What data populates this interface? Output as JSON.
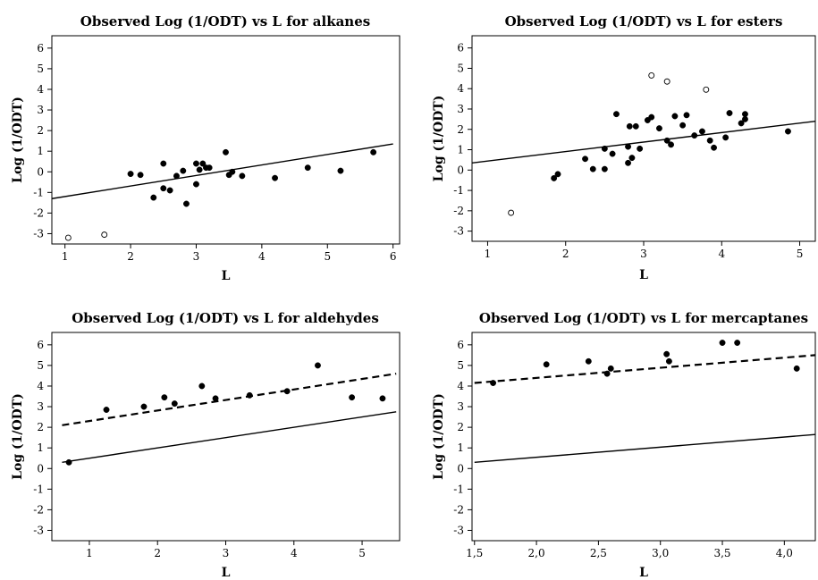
{
  "chart_data": [
    {
      "type": "scatter",
      "title": "Observed Log (1/ODT) vs L for alkanes",
      "xlabel": "L",
      "ylabel": "Log (1/ODT)",
      "xlim": [
        0.8,
        6.1
      ],
      "ylim": [
        -3.5,
        6.6
      ],
      "xticks": [
        1,
        2,
        3,
        4,
        5,
        6
      ],
      "xtick_labels": [
        "1",
        "2",
        "3",
        "4",
        "5",
        "6"
      ],
      "yticks": [
        -3,
        -2,
        -1,
        0,
        1,
        2,
        3,
        4,
        5,
        6
      ],
      "ytick_labels": [
        "-3",
        "-2",
        "-1",
        "0",
        "1",
        "2",
        "3",
        "4",
        "5",
        "6"
      ],
      "series": [
        {
          "marker": "filled",
          "points": [
            [
              2.0,
              -0.1
            ],
            [
              2.15,
              -0.15
            ],
            [
              2.35,
              -1.25
            ],
            [
              2.5,
              0.4
            ],
            [
              2.5,
              -0.8
            ],
            [
              2.6,
              -0.9
            ],
            [
              2.7,
              -0.2
            ],
            [
              2.8,
              0.05
            ],
            [
              2.85,
              -1.55
            ],
            [
              3.0,
              0.4
            ],
            [
              3.0,
              -0.6
            ],
            [
              3.05,
              0.1
            ],
            [
              3.1,
              0.4
            ],
            [
              3.15,
              0.2
            ],
            [
              3.2,
              0.2
            ],
            [
              3.45,
              0.95
            ],
            [
              3.5,
              -0.15
            ],
            [
              3.55,
              0.0
            ],
            [
              3.7,
              -0.2
            ],
            [
              4.2,
              -0.3
            ],
            [
              4.7,
              0.2
            ],
            [
              5.2,
              0.05
            ],
            [
              5.7,
              0.95
            ]
          ]
        },
        {
          "marker": "open",
          "points": [
            [
              1.05,
              -3.2
            ],
            [
              1.6,
              -3.05
            ]
          ]
        }
      ],
      "lines": [
        {
          "style": "solid",
          "x": [
            0.8,
            6.0
          ],
          "y": [
            -1.3,
            1.35
          ]
        }
      ]
    },
    {
      "type": "scatter",
      "title": "Observed Log (1/ODT) vs L for esters",
      "xlabel": "L",
      "ylabel": "Log (1/ODT)",
      "xlim": [
        0.8,
        5.2
      ],
      "ylim": [
        -3.5,
        6.6
      ],
      "xticks": [
        1,
        2,
        3,
        4,
        5
      ],
      "xtick_labels": [
        "1",
        "2",
        "3",
        "4",
        "5"
      ],
      "yticks": [
        -3,
        -2,
        -1,
        0,
        1,
        2,
        3,
        4,
        5,
        6
      ],
      "ytick_labels": [
        "-3",
        "-2",
        "-1",
        "0",
        "1",
        "2",
        "3",
        "4",
        "5",
        "6"
      ],
      "series": [
        {
          "marker": "filled",
          "points": [
            [
              1.85,
              -0.4
            ],
            [
              1.9,
              -0.2
            ],
            [
              2.25,
              0.55
            ],
            [
              2.35,
              0.05
            ],
            [
              2.5,
              1.05
            ],
            [
              2.5,
              0.05
            ],
            [
              2.6,
              0.8
            ],
            [
              2.65,
              2.75
            ],
            [
              2.8,
              1.15
            ],
            [
              2.8,
              0.35
            ],
            [
              2.82,
              2.15
            ],
            [
              2.85,
              0.6
            ],
            [
              2.9,
              2.15
            ],
            [
              2.95,
              1.05
            ],
            [
              3.05,
              2.45
            ],
            [
              3.1,
              2.6
            ],
            [
              3.2,
              2.05
            ],
            [
              3.3,
              1.45
            ],
            [
              3.35,
              1.25
            ],
            [
              3.4,
              2.65
            ],
            [
              3.5,
              2.2
            ],
            [
              3.55,
              2.7
            ],
            [
              3.65,
              1.7
            ],
            [
              3.75,
              1.9
            ],
            [
              3.85,
              1.45
            ],
            [
              3.9,
              1.1
            ],
            [
              4.05,
              1.6
            ],
            [
              4.1,
              2.8
            ],
            [
              4.25,
              2.3
            ],
            [
              4.3,
              2.75
            ],
            [
              4.3,
              2.5
            ],
            [
              4.85,
              1.9
            ]
          ]
        },
        {
          "marker": "open",
          "points": [
            [
              1.3,
              -2.1
            ],
            [
              3.1,
              4.65
            ],
            [
              3.3,
              4.35
            ],
            [
              3.8,
              3.95
            ]
          ]
        }
      ],
      "lines": [
        {
          "style": "solid",
          "x": [
            0.8,
            5.2
          ],
          "y": [
            0.35,
            2.4
          ]
        }
      ]
    },
    {
      "type": "scatter",
      "title": "Observed Log (1/ODT) vs L for aldehydes",
      "xlabel": "L",
      "ylabel": "Log (1/ODT)",
      "xlim": [
        0.45,
        5.55
      ],
      "ylim": [
        -3.5,
        6.6
      ],
      "xticks": [
        1,
        2,
        3,
        4,
        5
      ],
      "xtick_labels": [
        "1",
        "2",
        "3",
        "4",
        "5"
      ],
      "yticks": [
        -3,
        -2,
        -1,
        0,
        1,
        2,
        3,
        4,
        5,
        6
      ],
      "ytick_labels": [
        "-3",
        "-2",
        "-1",
        "0",
        "1",
        "2",
        "3",
        "4",
        "5",
        "6"
      ],
      "series": [
        {
          "marker": "filled",
          "points": [
            [
              0.7,
              0.3
            ],
            [
              1.25,
              2.85
            ],
            [
              1.8,
              3.0
            ],
            [
              2.1,
              3.45
            ],
            [
              2.25,
              3.15
            ],
            [
              2.65,
              4.0
            ],
            [
              2.85,
              3.4
            ],
            [
              3.35,
              3.55
            ],
            [
              3.9,
              3.75
            ],
            [
              4.35,
              5.0
            ],
            [
              4.85,
              3.45
            ],
            [
              5.3,
              3.4
            ]
          ]
        }
      ],
      "lines": [
        {
          "style": "solid",
          "x": [
            0.6,
            5.5
          ],
          "y": [
            0.3,
            2.75
          ]
        },
        {
          "style": "dashed",
          "x": [
            0.6,
            5.5
          ],
          "y": [
            2.1,
            4.6
          ]
        }
      ]
    },
    {
      "type": "scatter",
      "title": "Observed Log (1/ODT) vs L for mercaptanes",
      "xlabel": "L",
      "ylabel": "Log (1/ODT)",
      "xlim": [
        1.48,
        4.25
      ],
      "ylim": [
        -3.5,
        6.6
      ],
      "xticks": [
        1.5,
        2.0,
        2.5,
        3.0,
        3.5,
        4.0
      ],
      "xtick_labels": [
        "1,5",
        "2,0",
        "2,5",
        "3,0",
        "3,5",
        "4,0"
      ],
      "yticks": [
        -3,
        -2,
        -1,
        0,
        1,
        2,
        3,
        4,
        5,
        6
      ],
      "ytick_labels": [
        "-3",
        "-2",
        "-1",
        "0",
        "1",
        "2",
        "3",
        "4",
        "5",
        "6"
      ],
      "series": [
        {
          "marker": "filled",
          "points": [
            [
              1.65,
              4.15
            ],
            [
              2.08,
              5.05
            ],
            [
              2.42,
              5.2
            ],
            [
              2.57,
              4.6
            ],
            [
              2.6,
              4.85
            ],
            [
              3.05,
              5.55
            ],
            [
              3.07,
              5.2
            ],
            [
              3.5,
              6.1
            ],
            [
              3.62,
              6.1
            ],
            [
              4.1,
              4.85
            ]
          ]
        }
      ],
      "lines": [
        {
          "style": "solid",
          "x": [
            1.5,
            4.25
          ],
          "y": [
            0.3,
            1.65
          ]
        },
        {
          "style": "dashed",
          "x": [
            1.5,
            4.25
          ],
          "y": [
            4.15,
            5.5
          ]
        }
      ]
    }
  ]
}
